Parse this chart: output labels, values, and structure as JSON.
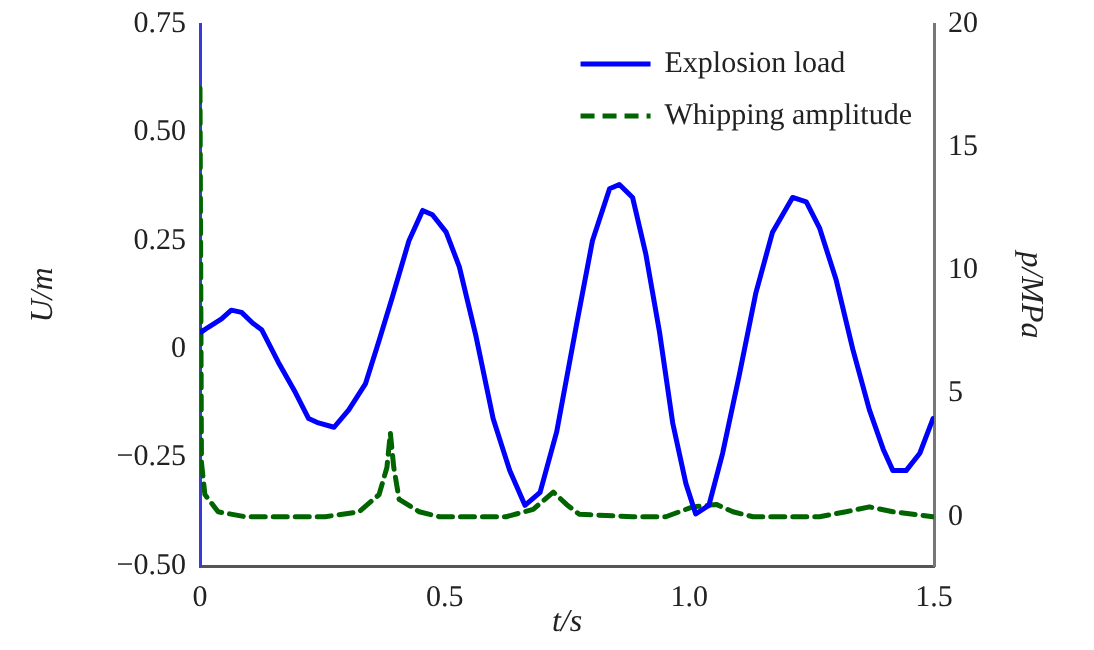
{
  "chart_data": {
    "type": "line",
    "xlabel": "t/s",
    "ylabel": "U/m",
    "y2label": "p/MPa",
    "xlim": [
      0,
      1.5
    ],
    "xticks": [
      0,
      0.5,
      {
        "value": 1,
        "label": "1.0"
      },
      1.5
    ],
    "ylim": [
      -0.5,
      0.75
    ],
    "yticks": [
      {
        "value": -0.5,
        "label": "−0.50"
      },
      {
        "value": -0.25,
        "label": "−0.25"
      },
      0,
      0.25,
      {
        "value": 0.5,
        "label": "0.50"
      },
      0.75
    ],
    "y2lim": [
      -2,
      20
    ],
    "y2ticks": [
      0,
      5,
      10,
      15,
      20
    ],
    "grid": false,
    "legend": "top right",
    "marker": "none",
    "series": [
      {
        "name": "Explosion load",
        "color": "#0000ff",
        "line_style": "solid",
        "x": [
          0.003,
          0.016,
          0.044,
          0.064,
          0.085,
          0.108,
          0.126,
          0.16,
          0.195,
          0.222,
          0.242,
          0.274,
          0.304,
          0.338,
          0.366,
          0.393,
          0.427,
          0.455,
          0.475,
          0.503,
          0.53,
          0.564,
          0.599,
          0.633,
          0.664,
          0.695,
          0.729,
          0.77,
          0.802,
          0.837,
          0.857,
          0.884,
          0.911,
          0.939,
          0.966,
          0.993,
          1.013,
          1.04,
          1.068,
          1.102,
          1.136,
          1.17,
          1.211,
          1.239,
          1.266,
          1.3,
          1.334,
          1.368,
          1.396,
          1.416,
          1.443,
          1.471,
          1.498
        ],
        "values": [
          0.04,
          0.05,
          0.07,
          0.09,
          0.085,
          0.06,
          0.045,
          -0.03,
          -0.1,
          -0.16,
          -0.17,
          -0.18,
          -0.14,
          -0.08,
          0.02,
          0.12,
          0.25,
          0.32,
          0.31,
          0.27,
          0.19,
          0.03,
          -0.16,
          -0.28,
          -0.36,
          -0.33,
          -0.19,
          0.06,
          0.25,
          0.37,
          0.38,
          0.35,
          0.22,
          0.04,
          -0.17,
          -0.31,
          -0.38,
          -0.36,
          -0.24,
          -0.06,
          0.13,
          0.27,
          0.35,
          0.34,
          0.28,
          0.16,
          0,
          -0.14,
          -0.23,
          -0.28,
          -0.28,
          -0.24,
          -0.16
        ]
      },
      {
        "name": "Whipping amplitude",
        "color": "#006400",
        "line_style": "dashed",
        "axis": "y2",
        "x": [
          0,
          0.003,
          0.01,
          0.037,
          0.092,
          0.256,
          0.325,
          0.366,
          0.382,
          0.389,
          0.396,
          0.407,
          0.448,
          0.489,
          0.626,
          0.681,
          0.722,
          0.749,
          0.775,
          0.884,
          0.952,
          1.007,
          1.055,
          1.089,
          1.13,
          1.266,
          1.32,
          1.368,
          1.416,
          1.498
        ],
        "values": [
          17.4,
          2.2,
          0.9,
          0.2,
          0,
          0,
          0.2,
          0.9,
          2,
          3.4,
          2,
          0.7,
          0.2,
          0,
          0,
          0.3,
          1,
          0.5,
          0.1,
          0,
          0,
          0.4,
          0.5,
          0.2,
          0,
          0,
          0.2,
          0.4,
          0.2,
          0
        ]
      }
    ]
  }
}
